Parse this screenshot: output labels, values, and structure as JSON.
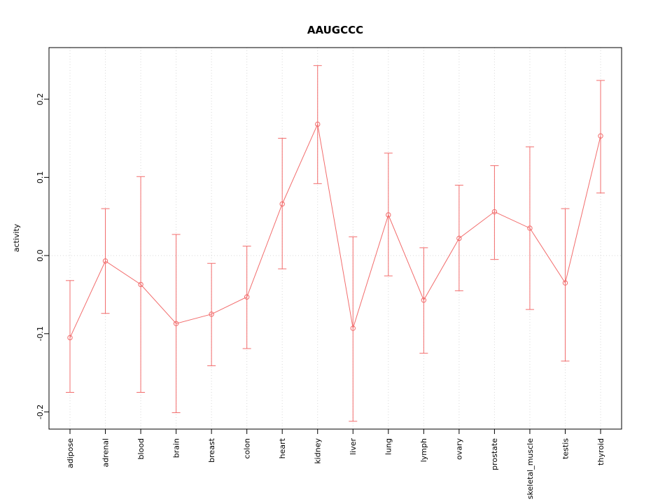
{
  "chart_data": {
    "type": "line",
    "title": "AAUGCCC",
    "xlabel": "",
    "ylabel": "activity",
    "categories": [
      "adipose",
      "adrenal",
      "blood",
      "brain",
      "breast",
      "colon",
      "heart",
      "kidney",
      "liver",
      "lung",
      "lymph",
      "ovary",
      "prostate",
      "skeletal_muscle",
      "testis",
      "thyroid"
    ],
    "series": [
      {
        "name": "activity",
        "values": [
          -0.105,
          -0.007,
          -0.037,
          -0.087,
          -0.075,
          -0.053,
          0.066,
          0.168,
          -0.093,
          0.052,
          -0.057,
          0.022,
          0.056,
          0.035,
          -0.035,
          0.153
        ],
        "error_low": [
          -0.175,
          -0.074,
          -0.175,
          -0.201,
          -0.141,
          -0.119,
          -0.017,
          0.092,
          -0.212,
          -0.026,
          -0.125,
          -0.045,
          -0.005,
          -0.069,
          -0.135,
          0.08
        ],
        "error_high": [
          -0.032,
          0.06,
          0.101,
          0.027,
          -0.01,
          0.012,
          0.15,
          0.243,
          0.024,
          0.131,
          0.01,
          0.09,
          0.115,
          0.139,
          0.06,
          0.224
        ]
      }
    ],
    "ylim": [
      -0.222,
      0.266
    ],
    "yticks": [
      -0.2,
      -0.1,
      0.0,
      0.1,
      0.2
    ],
    "ytick_labels": [
      "-0.2",
      "-0.1",
      "0.0",
      "0.1",
      "0.2"
    ],
    "zero_line": 0.0,
    "grid": "dotted vertical line at each category; dotted horizontal line at zero",
    "legend": "none",
    "marker": "open-circle",
    "series_color": "#f26c6c",
    "grid_color": "#d8d8d8",
    "axis_color": "#000000"
  }
}
